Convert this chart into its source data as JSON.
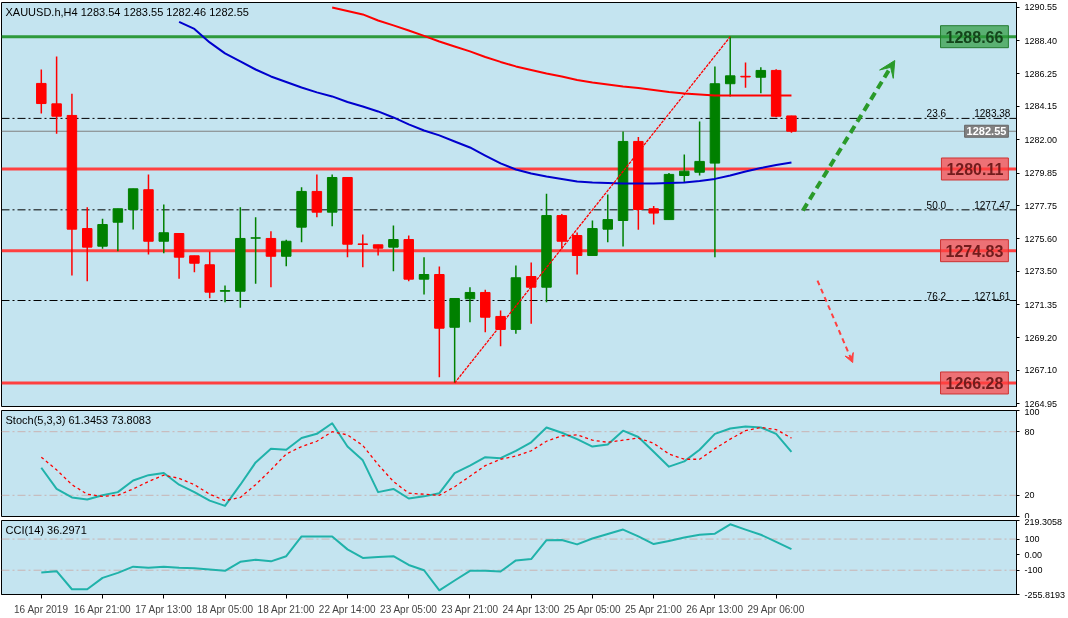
{
  "chart_data": [
    {
      "type": "candlestick",
      "title": "XAUUSD.h,H4  1283.54 1283.55 1282.46 1282.55",
      "tick_labels": "y",
      "grid": false,
      "categories": [
        null,
        null,
        null,
        null,
        null,
        null,
        null,
        null,
        null,
        null,
        null,
        null,
        null,
        null,
        null,
        null,
        null,
        null,
        null,
        null,
        null,
        null,
        null,
        null,
        null,
        null,
        null,
        null,
        null,
        null,
        null,
        null,
        null,
        null,
        null,
        null,
        null,
        null,
        null,
        null,
        null,
        null,
        null,
        null,
        null,
        null,
        null,
        null,
        null,
        null
      ],
      "annotations": [
        {
          "text": "23.6",
          "y": 1283.38
        },
        {
          "text": "50.0",
          "y": 1277.47
        },
        {
          "text": "76.2",
          "y": 1271.61
        }
      ],
      "ohlc": [
        [
          1285.64,
          1286.54,
          1283.7,
          1284.34
        ],
        [
          1284.32,
          1287.38,
          1282.39,
          1283.52
        ],
        [
          1283.57,
          1284.97,
          1273.23,
          1276.22
        ],
        [
          1276.26,
          1277.64,
          1272.86,
          1275.06
        ],
        [
          1275.12,
          1276.89,
          1274.95,
          1276.52
        ],
        [
          1276.67,
          1277.54,
          1274.8,
          1277.54
        ],
        [
          1277.49,
          1278.83,
          1276.2,
          1278.83
        ],
        [
          1278.77,
          1279.76,
          1274.58,
          1275.44
        ],
        [
          1275.44,
          1277.82,
          1274.67,
          1275.99
        ],
        [
          1275.94,
          1275.94,
          1273.01,
          1274.41
        ],
        [
          1274.5,
          1274.5,
          1273.44,
          1274.02
        ],
        [
          1273.92,
          1274.78,
          1271.76,
          1272.15
        ],
        [
          1272.21,
          1272.58,
          1271.5,
          1272.25
        ],
        [
          1272.21,
          1277.64,
          1271.14,
          1275.62
        ],
        [
          1275.64,
          1276.99,
          1272.69,
          1275.66
        ],
        [
          1275.62,
          1276.09,
          1272.47,
          1274.47
        ],
        [
          1274.47,
          1275.53,
          1273.83,
          1275.44
        ],
        [
          1276.35,
          1278.93,
          1275.38,
          1278.66
        ],
        [
          1278.66,
          1279.76,
          1276.99,
          1277.32
        ],
        [
          1277.32,
          1279.76,
          1276.41,
          1279.56
        ],
        [
          1279.56,
          1279.56,
          1274.41,
          1275.25
        ],
        [
          1275.27,
          1275.88,
          1273.76,
          1275.23
        ],
        [
          1275.21,
          1275.21,
          1274.52,
          1274.99
        ],
        [
          1275.06,
          1276.46,
          1273.5,
          1275.55
        ],
        [
          1275.55,
          1275.81,
          1272.86,
          1272.99
        ],
        [
          1272.99,
          1274.41,
          1272.0,
          1273.29
        ],
        [
          1273.29,
          1273.81,
          1266.65,
          1269.82
        ],
        [
          1269.88,
          1271.74,
          1266.28,
          1271.74
        ],
        [
          1271.72,
          1272.47,
          1270.21,
          1272.13
        ],
        [
          1272.13,
          1272.3,
          1269.56,
          1270.53
        ],
        [
          1270.58,
          1270.96,
          1268.66,
          1269.74
        ],
        [
          1269.74,
          1273.87,
          1269.46,
          1273.08
        ],
        [
          1273.16,
          1274.07,
          1270.1,
          1272.47
        ],
        [
          1272.47,
          1278.51,
          1271.5,
          1277.1
        ],
        [
          1277.1,
          1277.2,
          1274.95,
          1275.44
        ],
        [
          1275.81,
          1276.0,
          1273.29,
          1274.52
        ],
        [
          1274.52,
          1276.78,
          1274.52,
          1276.26
        ],
        [
          1276.22,
          1278.46,
          1275.38,
          1276.84
        ],
        [
          1276.78,
          1282.53,
          1275.1,
          1281.89
        ],
        [
          1281.89,
          1282.17,
          1276.18,
          1277.49
        ],
        [
          1277.54,
          1277.71,
          1276.52,
          1277.26
        ],
        [
          1276.84,
          1279.85,
          1276.84,
          1279.76
        ],
        [
          1279.69,
          1281.05,
          1279.26,
          1279.97
        ],
        [
          1279.9,
          1283.18,
          1279.69,
          1280.6
        ],
        [
          1280.49,
          1286.74,
          1274.41,
          1285.62
        ],
        [
          1285.62,
          1288.66,
          1284.8,
          1286.13
        ],
        [
          1286.1,
          1287.0,
          1285.36,
          1286.06
        ],
        [
          1286.04,
          1286.69,
          1285.01,
          1286.48
        ],
        [
          1286.48,
          1286.55,
          1283.45,
          1283.52
        ],
        [
          1283.54,
          1283.55,
          1282.46,
          1282.55
        ]
      ],
      "colors": [
        "#ff0000",
        "#ff0000",
        "#ff0000",
        "#ff0000",
        "#008000",
        "#008000",
        "#008000",
        "#ff0000",
        "#008000",
        "#ff0000",
        "#ff0000",
        "#ff0000",
        "#008000",
        "#008000",
        "#008000",
        "#ff0000",
        "#008000",
        "#008000",
        "#ff0000",
        "#008000",
        "#ff0000",
        "#ff0000",
        "#ff0000",
        "#008000",
        "#ff0000",
        "#008000",
        "#ff0000",
        "#008000",
        "#008000",
        "#ff0000",
        "#ff0000",
        "#008000",
        "#ff0000",
        "#008000",
        "#ff0000",
        "#ff0000",
        "#008000",
        "#008000",
        "#008000",
        "#ff0000",
        "#ff0000",
        "#008000",
        "#008000",
        "#008000",
        "#008000",
        "#008000",
        "#ff0000",
        "#008000",
        "#ff0000",
        "#ff0000"
      ],
      "series": [
        {
          "type": "line",
          "color": "#ff0000",
          "line_style": "solid",
          "values": [
            null,
            null,
            null,
            null,
            null,
            null,
            null,
            null,
            null,
            null,
            null,
            null,
            null,
            null,
            null,
            null,
            null,
            null,
            null,
            1290.55,
            1290.32,
            1290.1,
            1289.71,
            1289.39,
            1289.06,
            1288.71,
            1288.35,
            1288.03,
            1287.71,
            1287.35,
            1287.03,
            1286.74,
            1286.51,
            1286.28,
            1286.09,
            1285.86,
            1285.7,
            1285.57,
            1285.44,
            1285.35,
            1285.22,
            1285.09,
            1284.99,
            1284.93,
            1284.86,
            1284.86,
            1284.86,
            1284.86,
            1284.86,
            1284.86
          ]
        },
        {
          "type": "line",
          "color": "#0000cd",
          "line_style": "solid",
          "values": [
            null,
            null,
            null,
            null,
            null,
            null,
            null,
            null,
            null,
            1289.62,
            1289.16,
            1288.29,
            1287.58,
            1287.06,
            1286.54,
            1286.09,
            1285.73,
            1285.38,
            1285.06,
            1284.8,
            1284.44,
            1284.15,
            1283.83,
            1283.44,
            1282.99,
            1282.6,
            1282.28,
            1281.89,
            1281.5,
            1280.98,
            1280.47,
            1280.08,
            1279.82,
            1279.63,
            1279.47,
            1279.3,
            1279.24,
            1279.21,
            1279.18,
            1279.18,
            1279.18,
            1279.21,
            1279.24,
            1279.34,
            1279.47,
            1279.69,
            1279.95,
            1280.17,
            1280.37,
            1280.53
          ]
        },
        {
          "type": "line",
          "color": "#ff0000",
          "line_style": "dotted",
          "values": [
            null,
            null,
            null,
            null,
            null,
            null,
            null,
            null,
            null,
            null,
            null,
            null,
            null,
            null,
            null,
            null,
            null,
            null,
            null,
            null,
            null,
            null,
            null,
            null,
            null,
            null,
            null,
            1266.28,
            null,
            null,
            null,
            null,
            null,
            null,
            null,
            null,
            null,
            null,
            null,
            null,
            null,
            null,
            null,
            null,
            null,
            1288.66,
            null,
            null,
            null,
            null
          ]
        }
      ],
      "ylim": [
        1264.76,
        1290.87
      ],
      "yticks": [
        1290.55,
        {
          "value": 1288.4,
          "label": "1288.40"
        },
        1286.25,
        1284.15,
        {
          "value": 1282,
          "label": "1282.00"
        },
        1279.85,
        1277.75,
        {
          "value": 1275.6,
          "label": "1275.60"
        },
        {
          "value": 1273.5,
          "label": "1273.50"
        },
        1271.35,
        {
          "value": 1269.2,
          "label": "1269.20"
        },
        {
          "value": 1267.1,
          "label": "1267.10"
        },
        1264.95
      ],
      "ref_lines": [
        {
          "axis": "y",
          "value": 1288.66,
          "label": "1288.66",
          "color": "#2e9a3c",
          "line_style": "solid"
        },
        {
          "axis": "y",
          "value": 1283.38,
          "label": "1283.38",
          "color": "#000000",
          "line_style": "dashed"
        },
        {
          "axis": "y",
          "value": 1282.55,
          "label": "1282.55",
          "color": "#808080",
          "line_style": "solid"
        },
        {
          "axis": "y",
          "value": 1280.11,
          "label": "1280.11",
          "color": "#ff4040",
          "line_style": "solid"
        },
        {
          "axis": "y",
          "value": 1277.47,
          "label": "1277.47",
          "color": "#000000",
          "line_style": "dashed"
        },
        {
          "axis": "y",
          "value": 1274.83,
          "label": "1274.83",
          "color": "#ff4040",
          "line_style": "solid"
        },
        {
          "axis": "y",
          "value": 1271.61,
          "label": "1271.61",
          "color": "#000000",
          "line_style": "dashed"
        },
        {
          "axis": "y",
          "value": 1266.28,
          "label": "1266.28",
          "color": "#ff4040",
          "line_style": "solid"
        }
      ]
    },
    {
      "type": "line",
      "title": "Stoch(5,3,3) 61.3453 73.8083",
      "tick_labels": "y",
      "grid": false,
      "categories": [
        null,
        null,
        null,
        null,
        null,
        null,
        null,
        null,
        null,
        null,
        null,
        null,
        null,
        null,
        null,
        null,
        null,
        null,
        null,
        null,
        null,
        null,
        null,
        null,
        null,
        null,
        null,
        null,
        null,
        null,
        null,
        null,
        null,
        null,
        null,
        null,
        null,
        null,
        null,
        null,
        null,
        null,
        null,
        null,
        null,
        null,
        null,
        null,
        null,
        null
      ],
      "series": [
        {
          "color": "#20b2aa",
          "line_style": "solid",
          "values": [
            46,
            26,
            18,
            16,
            20,
            23,
            34,
            39,
            41,
            30,
            23,
            15,
            10,
            30,
            51,
            64,
            63,
            74,
            78,
            88,
            66,
            53,
            23,
            26,
            17,
            19,
            22,
            41,
            48,
            56,
            55,
            62,
            70,
            84,
            79,
            73,
            66,
            68,
            81,
            75,
            61,
            47,
            52,
            63,
            78,
            83,
            85,
            84,
            78,
            61
          ]
        },
        {
          "color": "#ff0000",
          "line_style": "dashed",
          "values": [
            56,
            44,
            30,
            21,
            19,
            20,
            26,
            33,
            39,
            36,
            30,
            21,
            15,
            18,
            30,
            44,
            59,
            66,
            71,
            80,
            77,
            67,
            49,
            33,
            22,
            21,
            20,
            28,
            38,
            48,
            54,
            57,
            62,
            71,
            76,
            77,
            72,
            70,
            72,
            74,
            69,
            59,
            54,
            54,
            64,
            73,
            81,
            84,
            82,
            74
          ]
        }
      ],
      "ylim": [
        0,
        100
      ],
      "yticks": [
        0,
        20,
        80,
        100
      ],
      "ref_lines": [
        {
          "axis": "y",
          "value": 20,
          "color": "#c9b3b3",
          "line_style": "dashed"
        },
        {
          "axis": "y",
          "value": 80,
          "color": "#c9b3b3",
          "line_style": "dashed"
        }
      ]
    },
    {
      "type": "line",
      "title": "CCI(14) 36.2971",
      "grid": false,
      "categories": [
        "16 Apr 2019",
        null,
        null,
        null,
        "16 Apr 21:00",
        null,
        null,
        null,
        "17 Apr 13:00",
        null,
        null,
        null,
        "18 Apr 05:00",
        null,
        null,
        null,
        "18 Apr 21:00",
        null,
        null,
        null,
        "22 Apr 14:00",
        null,
        null,
        null,
        "23 Apr 05:00",
        null,
        null,
        null,
        "23 Apr 21:00",
        null,
        null,
        null,
        "24 Apr 13:00",
        null,
        null,
        null,
        "25 Apr 05:00",
        null,
        null,
        null,
        "25 Apr 21:00",
        null,
        null,
        null,
        "26 Apr 13:00",
        null,
        null,
        null,
        "29 Apr 06:00",
        null
      ],
      "series": [
        {
          "color": "#20b2aa",
          "line_style": "solid",
          "values": [
            -115,
            -106,
            -222,
            -222,
            -149,
            -117,
            -77,
            -84,
            -77,
            -84,
            -88,
            -95,
            -104,
            -46,
            -32,
            -43,
            -10,
            117,
            117,
            117,
            34,
            -21,
            -15,
            -10,
            -66,
            -100,
            -229,
            -166,
            -104,
            -104,
            -108,
            -37,
            -28,
            93,
            94,
            66,
            104,
            133,
            161,
            117,
            68,
            88,
            110,
            128,
            135,
            195,
            161,
            128,
            82,
            36
          ]
        }
      ],
      "ylim": [
        -255.8193,
        219.3058
      ],
      "yticks": [
        219.3058,
        100,
        {
          "value": 0,
          "label": "0.00"
        },
        -100,
        -255.8193
      ],
      "ref_lines": [
        {
          "axis": "y",
          "value": 100,
          "color": "#c9b3b3",
          "line_style": "dashed"
        },
        {
          "axis": "y",
          "value": -100,
          "color": "#c9b3b3",
          "line_style": "dashed"
        }
      ]
    }
  ]
}
